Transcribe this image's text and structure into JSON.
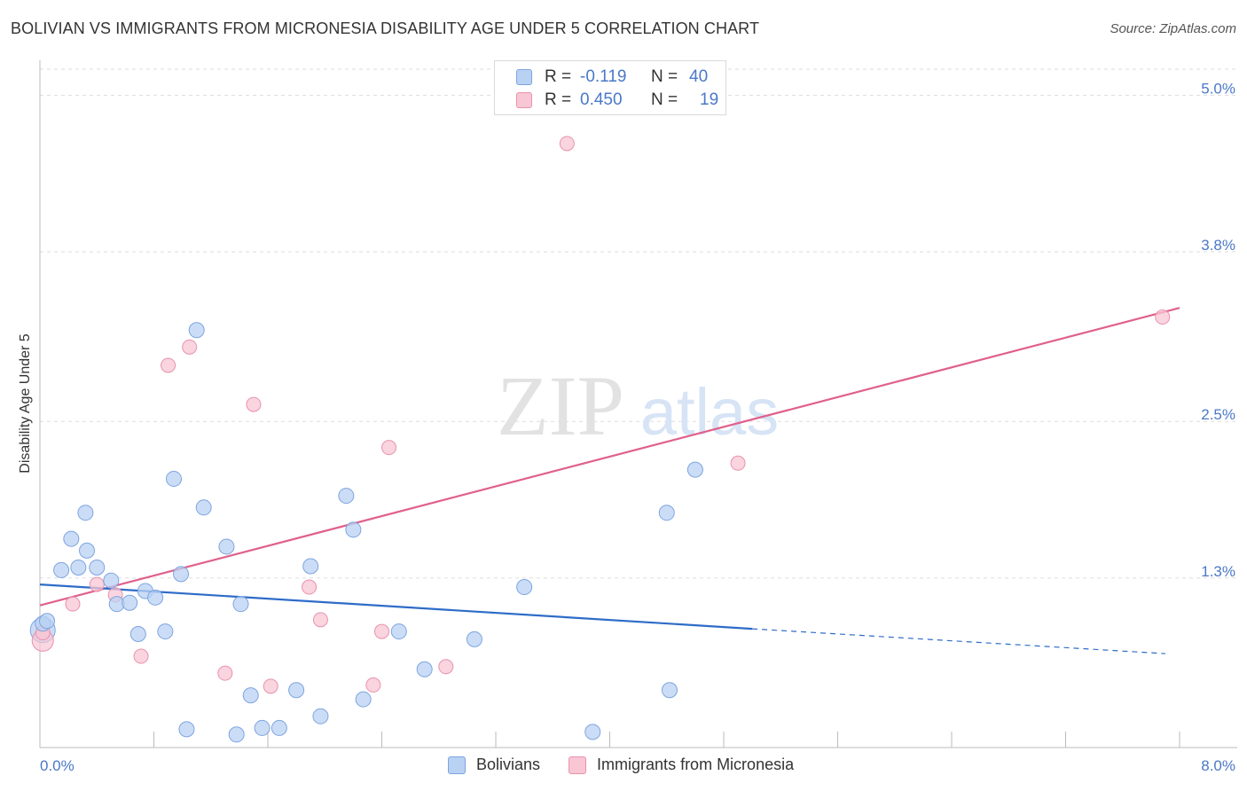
{
  "header": {
    "title": "BOLIVIAN VS IMMIGRANTS FROM MICRONESIA DISABILITY AGE UNDER 5 CORRELATION CHART",
    "source": "Source: ZipAtlas.com"
  },
  "watermark": {
    "zip": "ZIP",
    "atlas": "atlas"
  },
  "legend_top": {
    "rows": [
      {
        "r_label": "R =",
        "r_value": "-0.119",
        "n_label": "N =",
        "n_value": "40"
      },
      {
        "r_label": "R =",
        "r_value": "0.450",
        "n_label": "N =",
        "n_value": "19"
      }
    ]
  },
  "legend_bottom": {
    "items": [
      {
        "label": "Bolivians"
      },
      {
        "label": "Immigrants from Micronesia"
      }
    ]
  },
  "colors": {
    "blue_fill": "#b9d1f3",
    "blue_stroke": "#7da4e0",
    "blue_line": "#2e6cc8",
    "pink_fill": "#f8c6d4",
    "pink_stroke": "#e892ad",
    "pink_line": "#e0608c",
    "tick_text": "#4a78c8",
    "grid": "#dddddd"
  },
  "chart_data": {
    "type": "scatter",
    "title": "BOLIVIAN VS IMMIGRANTS FROM MICRONESIA DISABILITY AGE UNDER 5 CORRELATION CHART",
    "xlabel": "",
    "ylabel": "Disability Age Under 5",
    "xlim": [
      0,
      8
    ],
    "ylim": [
      0,
      5.2
    ],
    "x_tick_labels": [
      "0.0%",
      "8.0%"
    ],
    "y_ticks": [
      1.3,
      2.5,
      3.8,
      5.0
    ],
    "y_tick_labels": [
      "1.3%",
      "2.5%",
      "3.8%",
      "5.0%"
    ],
    "grid": true,
    "series": [
      {
        "name": "Bolivians",
        "r": -0.119,
        "n": 40,
        "points": [
          [
            0.02,
            0.95
          ],
          [
            0.05,
            0.97
          ],
          [
            0.15,
            1.36
          ],
          [
            0.22,
            1.6
          ],
          [
            0.27,
            1.38
          ],
          [
            0.32,
            1.8
          ],
          [
            0.33,
            1.51
          ],
          [
            0.4,
            1.38
          ],
          [
            0.5,
            1.28
          ],
          [
            0.54,
            1.1
          ],
          [
            0.63,
            1.11
          ],
          [
            0.69,
            0.87
          ],
          [
            0.74,
            1.2
          ],
          [
            0.81,
            1.15
          ],
          [
            0.88,
            0.89
          ],
          [
            0.94,
            2.06
          ],
          [
            0.99,
            1.33
          ],
          [
            1.03,
            0.14
          ],
          [
            1.1,
            3.2
          ],
          [
            1.15,
            1.84
          ],
          [
            1.31,
            1.54
          ],
          [
            1.38,
            0.1
          ],
          [
            1.41,
            1.1
          ],
          [
            1.48,
            0.4
          ],
          [
            1.56,
            0.15
          ],
          [
            1.68,
            0.15
          ],
          [
            1.8,
            0.44
          ],
          [
            1.9,
            1.39
          ],
          [
            1.97,
            0.24
          ],
          [
            2.15,
            1.93
          ],
          [
            2.2,
            1.67
          ],
          [
            2.27,
            0.37
          ],
          [
            2.52,
            0.89
          ],
          [
            2.7,
            0.6
          ],
          [
            3.05,
            0.83
          ],
          [
            3.4,
            1.23
          ],
          [
            3.88,
            0.12
          ],
          [
            4.4,
            1.8
          ],
          [
            4.42,
            0.44
          ],
          [
            4.6,
            2.13
          ]
        ],
        "trend": {
          "x": [
            0,
            5.0
          ],
          "y": [
            1.25,
            0.91
          ],
          "dashed_to": [
            7.9,
            0.72
          ]
        }
      },
      {
        "name": "Immigrants from Micronesia",
        "r": 0.45,
        "n": 19,
        "points": [
          [
            0.02,
            0.88
          ],
          [
            0.23,
            1.1
          ],
          [
            0.4,
            1.25
          ],
          [
            0.53,
            1.17
          ],
          [
            0.71,
            0.7
          ],
          [
            0.9,
            2.93
          ],
          [
            1.05,
            3.07
          ],
          [
            1.3,
            0.57
          ],
          [
            1.5,
            2.63
          ],
          [
            1.62,
            0.47
          ],
          [
            1.89,
            1.23
          ],
          [
            1.97,
            0.98
          ],
          [
            2.34,
            0.48
          ],
          [
            2.4,
            0.89
          ],
          [
            2.45,
            2.3
          ],
          [
            2.85,
            0.62
          ],
          [
            3.7,
            4.63
          ],
          [
            4.9,
            2.18
          ],
          [
            7.88,
            3.3
          ]
        ],
        "trend": {
          "x": [
            0,
            8.0
          ],
          "y": [
            1.09,
            3.37
          ]
        }
      }
    ]
  }
}
